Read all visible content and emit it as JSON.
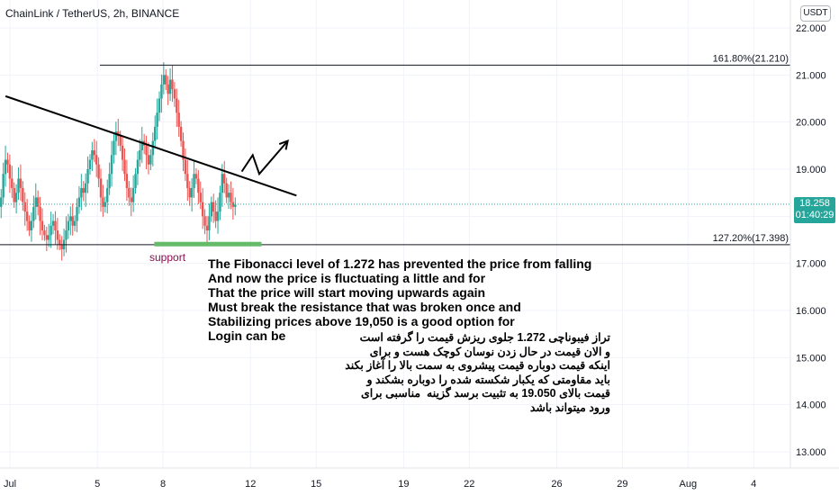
{
  "header": {
    "title": "ChainLink / TetherUS, 2h, BINANCE",
    "currency": "USDT"
  },
  "price_tag": {
    "price": "18.258",
    "countdown": "01:40:29"
  },
  "colors": {
    "bull": "#26a69a",
    "bear": "#ef5350",
    "support": "#66bb6a",
    "support_text": "#880e4f",
    "grid": "#f0f3fa"
  },
  "annotations": {
    "support": "support",
    "note_en": "The Fibonacci level of 1.272 has prevented the price from falling\nAnd now the price is fluctuating a little and for\nThat the price will start moving upwards again\nMust break the resistance that was broken once and\nStabilizing prices above 19,050 is a good option for\nLogin can be",
    "note_fa": "تراز فیبوناچی 1.272 جلوی ریزش قیمت را گرفته است\nو الان قیمت در حال زدن نوسان کوچک هست و برای\nاینکه قیمت دوباره قیمت پیشروی به سمت بالا را آغاز بکند\nباید مقاومتی که یکبار شکسته شده را دوباره بشکند و\nقیمت بالای 19.050 به تثبیت برسد گزینه  مناسبی برای\nورود میتواند باشد"
  },
  "chart_data": {
    "type": "candlestick",
    "title": "ChainLink / TetherUS, 2h, BINANCE",
    "y_ticks": [
      "22.000",
      "21.000",
      "20.000",
      "19.000",
      "18.000",
      "17.000",
      "16.000",
      "15.000",
      "14.000",
      "13.000"
    ],
    "y_tick_values": [
      22,
      21,
      20,
      19,
      18,
      17,
      16,
      15,
      14,
      13
    ],
    "ylim": [
      12.6,
      22.4
    ],
    "x_ticks": [
      "Jul",
      "5",
      "8",
      "12",
      "15",
      "19",
      "22",
      "26",
      "29",
      "Aug",
      "4"
    ],
    "x_tick_days": [
      1,
      5,
      8,
      12,
      15,
      19,
      22,
      26,
      29,
      32,
      35
    ],
    "fib_levels": [
      {
        "label": "161.80%(21.210)",
        "value": 21.21
      },
      {
        "label": "127.20%(17.398)",
        "value": 17.398
      }
    ],
    "last_price": 18.258,
    "trendline": {
      "start": {
        "day": 0.8,
        "price": 20.55
      },
      "end": {
        "day": 14.1,
        "price": 18.44
      }
    },
    "projection_arrow": [
      {
        "day": 11.6,
        "price": 18.95
      },
      {
        "day": 12.1,
        "price": 19.3
      },
      {
        "day": 12.4,
        "price": 18.9
      },
      {
        "day": 13.7,
        "price": 19.6
      }
    ],
    "support_zone": {
      "day_start": 7.6,
      "day_end": 12.5,
      "price": 17.4
    },
    "closes": [
      18.2,
      18.4,
      18.9,
      19.2,
      19.1,
      18.8,
      18.6,
      18.3,
      18.5,
      18.8,
      18.6,
      18.3,
      18.1,
      17.9,
      17.7,
      17.9,
      18.2,
      18.4,
      18.2,
      17.9,
      17.7,
      17.6,
      17.5,
      17.6,
      17.8,
      17.9,
      17.7,
      17.5,
      17.4,
      17.3,
      17.5,
      17.7,
      17.9,
      18.0,
      17.8,
      17.9,
      18.2,
      18.4,
      18.6,
      18.5,
      18.7,
      19.0,
      19.2,
      19.4,
      19.3,
      19.1,
      18.8,
      18.4,
      18.2,
      18.3,
      18.6,
      18.9,
      19.3,
      19.6,
      19.8,
      19.7,
      19.5,
      19.2,
      18.9,
      18.6,
      18.4,
      18.3,
      18.6,
      18.9,
      19.2,
      19.4,
      19.6,
      19.5,
      19.3,
      19.1,
      19.3,
      19.6,
      19.9,
      20.2,
      20.5,
      20.8,
      21.0,
      20.8,
      20.6,
      20.9,
      20.7,
      20.5,
      20.2,
      19.9,
      19.6,
      19.2,
      18.9,
      18.6,
      18.4,
      18.6,
      18.9,
      18.8,
      18.5,
      18.3,
      18.0,
      17.8,
      17.7,
      18.0,
      18.3,
      18.1,
      17.9,
      18.1,
      18.5,
      18.9,
      18.7,
      18.4,
      18.5,
      18.3,
      18.2,
      18.25
    ]
  }
}
